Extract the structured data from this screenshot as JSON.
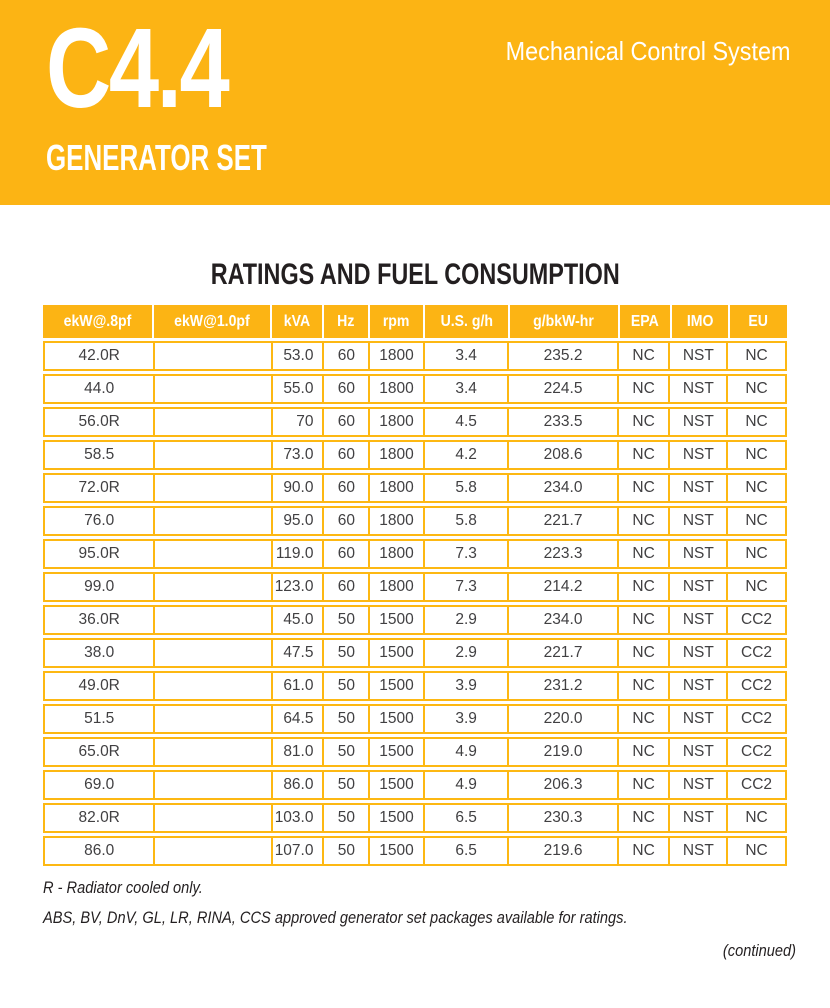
{
  "masthead": {
    "model": "C4.4",
    "subtitle": "GENERATOR SET",
    "tagline": "Mechanical Control System"
  },
  "section": {
    "title": "RATINGS AND FUEL CONSUMPTION"
  },
  "table": {
    "columns": [
      "ekW@.8pf",
      "ekW@1.0pf",
      "kVA",
      "Hz",
      "rpm",
      "U.S. g/h",
      "g/bkW-hr",
      "EPA",
      "IMO",
      "EU"
    ],
    "rows": [
      [
        "42.0R",
        "",
        "53.0",
        "60",
        "1800",
        "3.4",
        "235.2",
        "NC",
        "NST",
        "NC"
      ],
      [
        "44.0",
        "",
        "55.0",
        "60",
        "1800",
        "3.4",
        "224.5",
        "NC",
        "NST",
        "NC"
      ],
      [
        "56.0R",
        "",
        "70",
        "60",
        "1800",
        "4.5",
        "233.5",
        "NC",
        "NST",
        "NC"
      ],
      [
        "58.5",
        "",
        "73.0",
        "60",
        "1800",
        "4.2",
        "208.6",
        "NC",
        "NST",
        "NC"
      ],
      [
        "72.0R",
        "",
        "90.0",
        "60",
        "1800",
        "5.8",
        "234.0",
        "NC",
        "NST",
        "NC"
      ],
      [
        "76.0",
        "",
        "95.0",
        "60",
        "1800",
        "5.8",
        "221.7",
        "NC",
        "NST",
        "NC"
      ],
      [
        "95.0R",
        "",
        "119.0",
        "60",
        "1800",
        "7.3",
        "223.3",
        "NC",
        "NST",
        "NC"
      ],
      [
        "99.0",
        "",
        "123.0",
        "60",
        "1800",
        "7.3",
        "214.2",
        "NC",
        "NST",
        "NC"
      ],
      [
        "36.0R",
        "",
        "45.0",
        "50",
        "1500",
        "2.9",
        "234.0",
        "NC",
        "NST",
        "CC2"
      ],
      [
        "38.0",
        "",
        "47.5",
        "50",
        "1500",
        "2.9",
        "221.7",
        "NC",
        "NST",
        "CC2"
      ],
      [
        "49.0R",
        "",
        "61.0",
        "50",
        "1500",
        "3.9",
        "231.2",
        "NC",
        "NST",
        "CC2"
      ],
      [
        "51.5",
        "",
        "64.5",
        "50",
        "1500",
        "3.9",
        "220.0",
        "NC",
        "NST",
        "CC2"
      ],
      [
        "65.0R",
        "",
        "81.0",
        "50",
        "1500",
        "4.9",
        "219.0",
        "NC",
        "NST",
        "CC2"
      ],
      [
        "69.0",
        "",
        "86.0",
        "50",
        "1500",
        "4.9",
        "206.3",
        "NC",
        "NST",
        "CC2"
      ],
      [
        "82.0R",
        "",
        "103.0",
        "50",
        "1500",
        "6.5",
        "230.3",
        "NC",
        "NST",
        "NC"
      ],
      [
        "86.0",
        "",
        "107.0",
        "50",
        "1500",
        "6.5",
        "219.6",
        "NC",
        "NST",
        "NC"
      ]
    ]
  },
  "notes": {
    "radiator": "R - Radiator cooled only.",
    "approvals": "ABS, BV, DnV, GL, LR, RINA, CCS approved generator set packages available for ratings."
  },
  "continued_label": "(continued)",
  "colors": {
    "brand_yellow": "#FCB414",
    "table_border_yellow": "#FDB813",
    "table_text": "#414042",
    "title_text": "#231F20"
  }
}
